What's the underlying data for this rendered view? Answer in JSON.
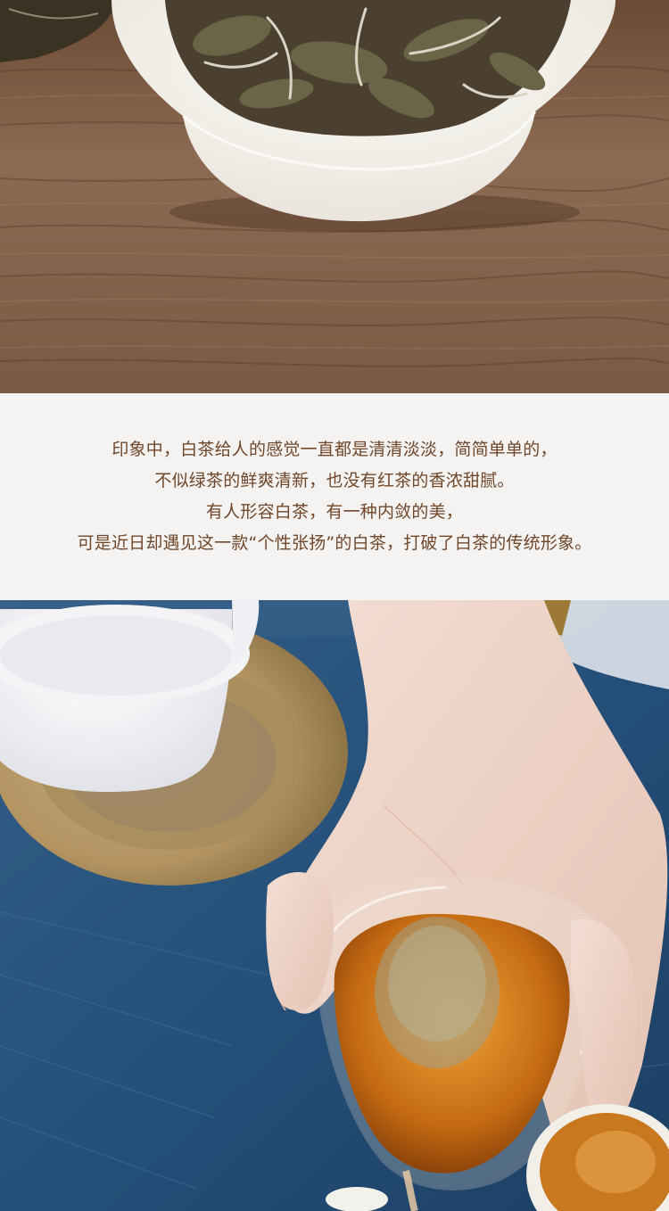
{
  "intro_text": {
    "lines": [
      "印象中，白茶给人的感觉一直都是清清淡淡，简简单单的，",
      "不似绿茶的鲜爽清新，也没有红茶的香浓甜腻。",
      "有人形容白茶，有一种内敛的美，",
      "可是近日却遇见这一款“个性张扬”的白茶，打破了白茶的传统形象。"
    ]
  },
  "colors": {
    "text": "#70472a",
    "band_background": "#f4f3f1",
    "wood": "#8a6448",
    "cloth": "#26507a",
    "tea_liquor": "#c46a12"
  }
}
